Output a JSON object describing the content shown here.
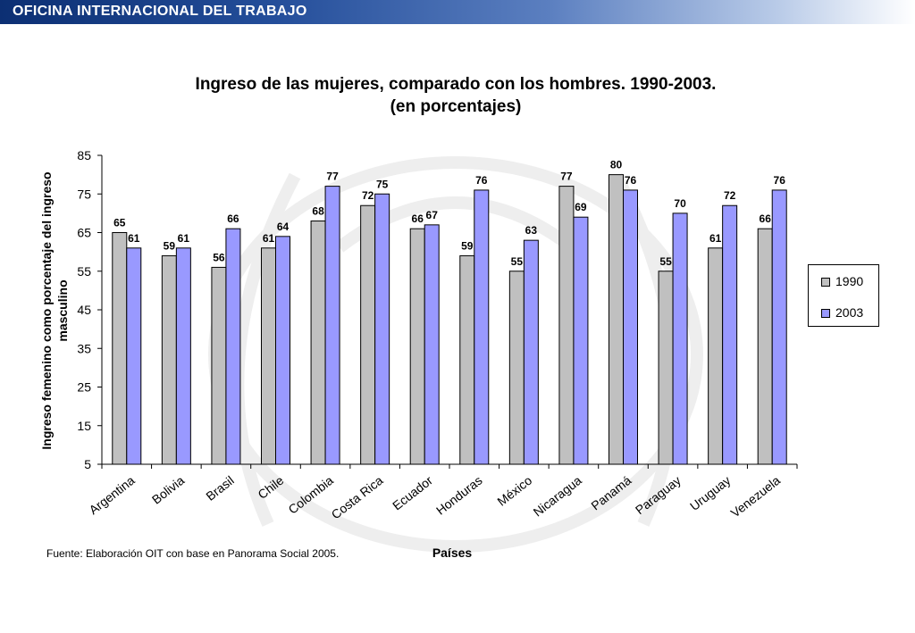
{
  "header": {
    "title": "OFICINA INTERNACIONAL DEL TRABAJO"
  },
  "chart_data": {
    "type": "bar",
    "title_line1": "Ingreso de las mujeres, comparado con los hombres. 1990-2003.",
    "title_line2": "(en porcentajes)",
    "xlabel": "Países",
    "ylabel_line1": "Ingreso femenino como porcentaje del ingreso",
    "ylabel_line2": "masculino",
    "ylim": [
      5,
      85
    ],
    "yticks": [
      5,
      15,
      25,
      35,
      45,
      55,
      65,
      75,
      85
    ],
    "categories": [
      "Argentina",
      "Bolivia",
      "Brasil",
      "Chile",
      "Colombia",
      "Costa Rica",
      "Ecuador",
      "Honduras",
      "México",
      "Nicaragua",
      "Panamá",
      "Paraguay",
      "Uruguay",
      "Venezuela"
    ],
    "series": [
      {
        "name": "1990",
        "color": "#c0c0c0",
        "values": [
          65,
          59,
          56,
          61,
          68,
          72,
          66,
          59,
          55,
          77,
          80,
          55,
          61,
          66
        ]
      },
      {
        "name": "2003",
        "color": "#9999ff",
        "values": [
          61,
          61,
          66,
          64,
          77,
          75,
          67,
          76,
          63,
          69,
          76,
          70,
          72,
          76
        ]
      }
    ],
    "legend_position": "right",
    "grid": false
  },
  "source_note": "Fuente: Elaboración OIT con base en Panorama Social 2005."
}
